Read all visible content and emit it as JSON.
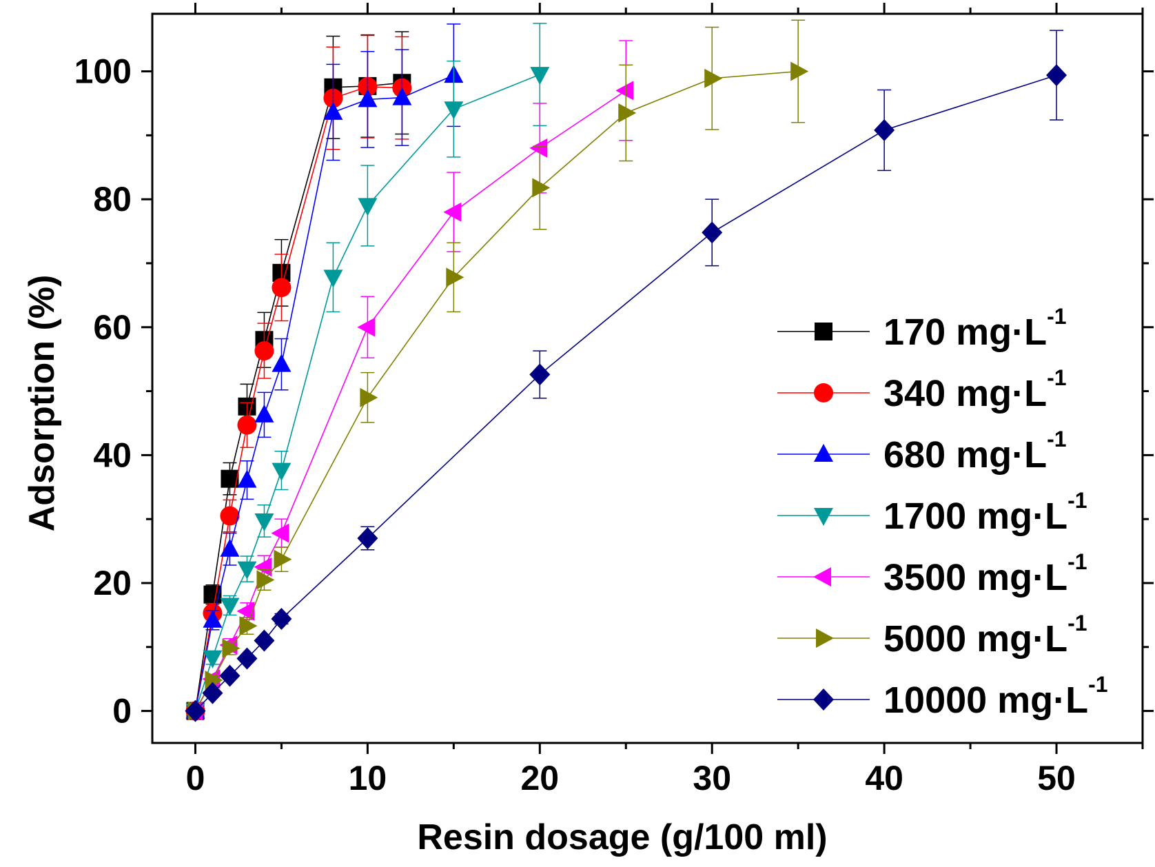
{
  "chart_data": {
    "type": "line",
    "title": "",
    "xlabel": "Resin dosage (g/100 ml)",
    "ylabel": "Adsorption (%)",
    "xlim": [
      -2.5,
      55
    ],
    "ylim": [
      -5,
      109
    ],
    "xticks": [
      0,
      10,
      20,
      30,
      40,
      50
    ],
    "yticks": [
      0,
      20,
      40,
      60,
      80,
      100
    ],
    "grid": false,
    "legend_position": "right",
    "series": [
      {
        "name": "170 mg·L",
        "label_base": "170 mg·L",
        "label_sup": "-1",
        "color": "#000000",
        "marker": "square",
        "x": [
          0,
          1,
          2,
          3,
          4,
          5,
          8,
          10,
          12
        ],
        "y": [
          0,
          18.2,
          36.3,
          47.6,
          58.0,
          68.5,
          97.5,
          97.7,
          98.2
        ],
        "err": [
          0.5,
          1.5,
          2.5,
          3.5,
          4.3,
          5.2,
          8.0,
          8.0,
          8.0
        ]
      },
      {
        "name": "340 mg·L",
        "label_base": "340 mg·L",
        "label_sup": "-1",
        "color": "#ff0000",
        "marker": "circle",
        "x": [
          0,
          1,
          2,
          3,
          4,
          5,
          8,
          10,
          12
        ],
        "y": [
          0,
          15.3,
          30.5,
          44.7,
          56.3,
          66.2,
          95.8,
          97.6,
          97.4
        ],
        "err": [
          0.5,
          1.5,
          2.5,
          3.5,
          4.3,
          5.2,
          8.0,
          8.0,
          8.0
        ]
      },
      {
        "name": "680 mg·L",
        "label_base": "680 mg·L",
        "label_sup": "-1",
        "color": "#0000ff",
        "marker": "triangle-up",
        "x": [
          0,
          1,
          2,
          3,
          4,
          5,
          8,
          10,
          12,
          15
        ],
        "y": [
          0,
          14.2,
          25.3,
          36.1,
          46.3,
          54.2,
          93.6,
          95.6,
          95.9,
          99.4
        ],
        "err": [
          0.5,
          1.5,
          2.5,
          3.0,
          3.5,
          4.0,
          7.5,
          7.5,
          7.5,
          8.0
        ]
      },
      {
        "name": "1700 mg·L",
        "label_base": "1700 mg·L",
        "label_sup": "-1",
        "color": "#009999",
        "marker": "triangle-down",
        "x": [
          0,
          1,
          2,
          3,
          4,
          5,
          8,
          10,
          15,
          20
        ],
        "y": [
          0,
          8.3,
          16.5,
          22.2,
          29.7,
          37.6,
          67.8,
          79.0,
          94.1,
          99.5
        ],
        "err": [
          0.5,
          1.0,
          1.5,
          2.0,
          2.5,
          3.0,
          5.4,
          6.3,
          7.5,
          8.0
        ]
      },
      {
        "name": "3500 mg·L",
        "label_base": "3500 mg·L",
        "label_sup": "-1",
        "color": "#ff00ff",
        "marker": "triangle-left",
        "x": [
          0,
          1,
          2,
          3,
          4,
          5,
          10,
          15,
          20,
          25
        ],
        "y": [
          0,
          5.0,
          10.3,
          15.6,
          22.5,
          27.8,
          60.0,
          78.0,
          88.0,
          97.0
        ],
        "err": [
          0.5,
          0.7,
          1.0,
          1.3,
          1.8,
          2.2,
          4.8,
          6.2,
          7.0,
          7.8
        ]
      },
      {
        "name": "5000 mg·L",
        "label_base": "5000 mg·L",
        "label_sup": "-1",
        "color": "#808000",
        "marker": "triangle-right",
        "x": [
          0,
          1,
          2,
          3,
          4,
          5,
          10,
          15,
          20,
          25,
          30,
          35
        ],
        "y": [
          0,
          4.8,
          9.8,
          13.3,
          20.5,
          23.7,
          49.0,
          67.8,
          81.8,
          93.5,
          98.9,
          100.0
        ],
        "err": [
          0.5,
          0.7,
          1.0,
          1.3,
          1.6,
          1.9,
          3.9,
          5.4,
          6.5,
          7.5,
          8.0,
          8.0
        ]
      },
      {
        "name": "10000 mg·L",
        "label_base": "10000 mg·L",
        "label_sup": "-1",
        "color": "#000080",
        "marker": "diamond",
        "x": [
          0,
          1,
          2,
          3,
          4,
          5,
          10,
          20,
          30,
          40,
          50
        ],
        "y": [
          0,
          2.8,
          5.5,
          8.2,
          11.0,
          14.4,
          27.0,
          52.6,
          74.8,
          90.8,
          99.4
        ],
        "err": [
          0.3,
          0.3,
          0.4,
          0.5,
          0.6,
          0.8,
          1.8,
          3.7,
          5.2,
          6.3,
          7.0
        ]
      }
    ]
  }
}
